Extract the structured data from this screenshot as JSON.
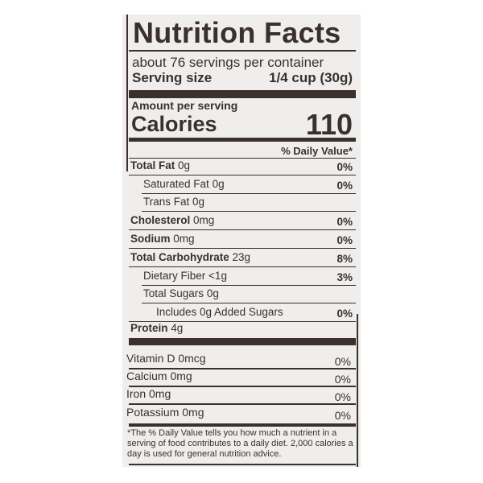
{
  "title": "Nutrition Facts",
  "servings": "about 76 servings per container",
  "serving_size_label": "Serving size",
  "serving_size_value": "1/4 cup (30g)",
  "amount_per_serving": "Amount per serving",
  "calories_label": "Calories",
  "calories_value": "110",
  "dv_header": "% Daily Value*",
  "nutrients": [
    {
      "name": "Total Fat",
      "amount": "0g",
      "dv": "0%"
    },
    {
      "name": "Saturated Fat",
      "amount": "0g",
      "dv": "0%"
    },
    {
      "name": "Trans Fat",
      "amount": "0g",
      "dv": ""
    },
    {
      "name": "Cholesterol",
      "amount": "0mg",
      "dv": "0%"
    },
    {
      "name": "Sodium",
      "amount": "0mg",
      "dv": "0%"
    },
    {
      "name": "Total Carbohydrate",
      "amount": "23g",
      "dv": "8%"
    },
    {
      "name": "Dietary Fiber",
      "amount": "<1g",
      "dv": "3%"
    },
    {
      "name": "Total Sugars",
      "amount": "0g",
      "dv": ""
    },
    {
      "name": "Includes 0g Added Sugars",
      "amount": "",
      "dv": "0%"
    },
    {
      "name": "Protein",
      "amount": "4g",
      "dv": ""
    }
  ],
  "vitamins": [
    {
      "name": "Vitamin D 0mcg",
      "dv": "0%"
    },
    {
      "name": "Calcium 0mg",
      "dv": "0%"
    },
    {
      "name": "Iron 0mg",
      "dv": "0%"
    },
    {
      "name": "Potassium 0mg",
      "dv": "0%"
    }
  ],
  "footnote": "*The % Daily Value tells you how much a nutrient in a serving of food contributes to a daily diet. 2,000 calories a day is used for general nutrition advice."
}
